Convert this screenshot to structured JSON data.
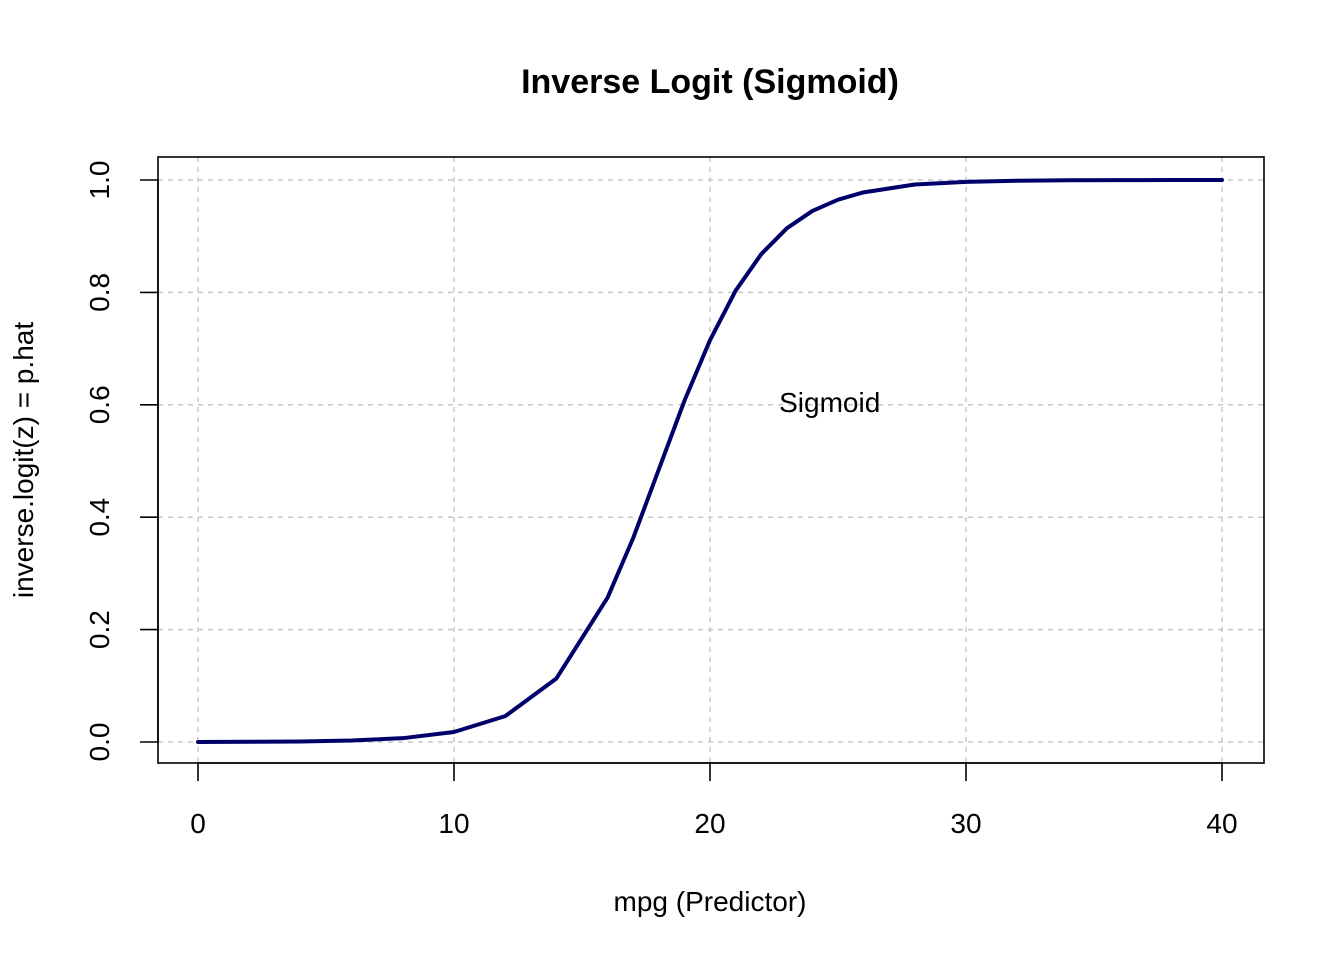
{
  "chart_data": {
    "type": "line",
    "title": "Inverse Logit (Sigmoid)",
    "xlabel": "mpg (Predictor)",
    "ylabel": "inverse.logit(z) = p.hat",
    "xlim": [
      0,
      40
    ],
    "ylim": [
      0,
      1
    ],
    "x_ticks": [
      "0",
      "10",
      "20",
      "30",
      "40"
    ],
    "y_ticks": [
      "0.0",
      "0.2",
      "0.4",
      "0.6",
      "0.8",
      "1.0"
    ],
    "grid": true,
    "series": [
      {
        "color": "#00006b",
        "x": [
          0,
          2,
          4,
          6,
          8,
          10,
          12,
          14,
          16,
          17,
          18,
          19,
          20,
          21,
          22,
          23,
          24,
          25,
          26,
          28,
          30,
          32,
          34,
          36,
          38,
          40
        ],
        "y": [
          0.0,
          0.0004,
          0.001,
          0.0026,
          0.0068,
          0.0178,
          0.046,
          0.113,
          0.257,
          0.363,
          0.485,
          0.607,
          0.715,
          0.803,
          0.868,
          0.914,
          0.945,
          0.965,
          0.978,
          0.992,
          0.9966,
          0.9987,
          0.9995,
          0.9998,
          0.9999,
          1.0
        ]
      }
    ],
    "annotations": [
      {
        "text": "Sigmoid",
        "x": 22.7,
        "y": 0.605
      }
    ]
  }
}
